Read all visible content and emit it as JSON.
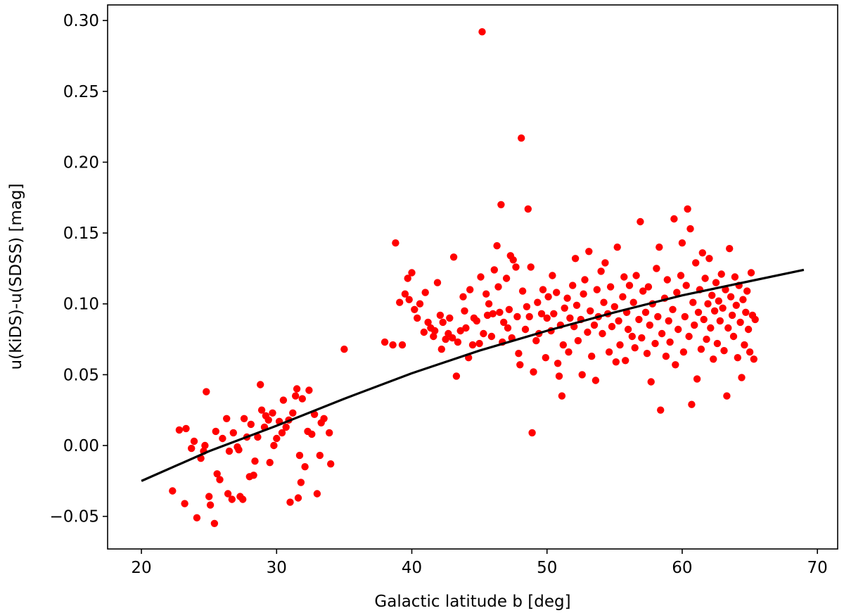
{
  "chart_data": {
    "type": "scatter",
    "title": "",
    "xlabel": "Galactic latitude b [deg]",
    "ylabel": "u(KiDS)-u(SDSS) [mag]",
    "xlim": [
      17.5,
      71.5
    ],
    "ylim": [
      -0.073,
      0.311
    ],
    "x_ticks": [
      20,
      30,
      40,
      50,
      60,
      70
    ],
    "x_tick_labels": [
      "20",
      "30",
      "40",
      "50",
      "60",
      "70"
    ],
    "y_ticks": [
      -0.05,
      0.0,
      0.05,
      0.1,
      0.15,
      0.2,
      0.25,
      0.3
    ],
    "y_tick_labels": [
      "−0.05",
      "0.00",
      "0.05",
      "0.10",
      "0.15",
      "0.20",
      "0.25",
      "0.30"
    ],
    "grid": false,
    "legend": "none",
    "colors": {
      "points": "#ff0000",
      "fit": "#000000",
      "axes": "#000000"
    },
    "series": [
      {
        "kind": "points",
        "points": [
          [
            22.3,
            -0.032
          ],
          [
            22.8,
            0.011
          ],
          [
            23.2,
            -0.041
          ],
          [
            23.3,
            0.012
          ],
          [
            23.7,
            -0.002
          ],
          [
            23.9,
            0.003
          ],
          [
            24.1,
            -0.051
          ],
          [
            24.4,
            -0.009
          ],
          [
            24.6,
            -0.004
          ],
          [
            24.7,
            0.0
          ],
          [
            24.8,
            0.038
          ],
          [
            25.0,
            -0.036
          ],
          [
            25.1,
            -0.042
          ],
          [
            25.4,
            -0.055
          ],
          [
            25.5,
            0.01
          ],
          [
            25.6,
            -0.02
          ],
          [
            25.8,
            -0.024
          ],
          [
            26.0,
            0.005
          ],
          [
            26.3,
            0.019
          ],
          [
            26.4,
            -0.034
          ],
          [
            26.5,
            -0.004
          ],
          [
            26.7,
            -0.038
          ],
          [
            26.8,
            0.009
          ],
          [
            27.1,
            -0.001
          ],
          [
            27.2,
            -0.003
          ],
          [
            27.3,
            -0.036
          ],
          [
            27.5,
            -0.038
          ],
          [
            27.6,
            0.019
          ],
          [
            27.8,
            0.006
          ],
          [
            28.0,
            -0.022
          ],
          [
            28.1,
            0.015
          ],
          [
            28.3,
            -0.021
          ],
          [
            28.4,
            -0.011
          ],
          [
            28.6,
            0.006
          ],
          [
            28.8,
            0.043
          ],
          [
            28.9,
            0.025
          ],
          [
            29.1,
            0.013
          ],
          [
            29.2,
            0.021
          ],
          [
            29.4,
            0.018
          ],
          [
            29.5,
            -0.012
          ],
          [
            29.7,
            0.023
          ],
          [
            29.8,
            0.0
          ],
          [
            30.0,
            0.005
          ],
          [
            30.2,
            0.017
          ],
          [
            30.4,
            0.009
          ],
          [
            30.5,
            0.032
          ],
          [
            30.7,
            0.013
          ],
          [
            30.9,
            0.018
          ],
          [
            31.0,
            -0.04
          ],
          [
            31.2,
            0.023
          ],
          [
            31.4,
            0.035
          ],
          [
            31.5,
            0.04
          ],
          [
            31.6,
            -0.037
          ],
          [
            31.7,
            -0.007
          ],
          [
            31.8,
            -0.026
          ],
          [
            31.9,
            0.033
          ],
          [
            32.1,
            -0.015
          ],
          [
            32.3,
            0.01
          ],
          [
            32.4,
            0.039
          ],
          [
            32.6,
            0.008
          ],
          [
            32.8,
            0.022
          ],
          [
            33.0,
            -0.034
          ],
          [
            33.2,
            -0.007
          ],
          [
            33.3,
            0.016
          ],
          [
            33.5,
            0.019
          ],
          [
            33.9,
            0.009
          ],
          [
            34.0,
            -0.013
          ],
          [
            35.0,
            0.068
          ],
          [
            38.0,
            0.073
          ],
          [
            38.6,
            0.071
          ],
          [
            38.8,
            0.143
          ],
          [
            39.1,
            0.101
          ],
          [
            39.3,
            0.071
          ],
          [
            39.5,
            0.107
          ],
          [
            39.7,
            0.118
          ],
          [
            39.8,
            0.103
          ],
          [
            40.0,
            0.122
          ],
          [
            40.2,
            0.096
          ],
          [
            40.4,
            0.09
          ],
          [
            40.6,
            0.1
          ],
          [
            40.9,
            0.08
          ],
          [
            41.0,
            0.108
          ],
          [
            41.2,
            0.087
          ],
          [
            41.4,
            0.083
          ],
          [
            41.6,
            0.077
          ],
          [
            41.7,
            0.081
          ],
          [
            41.9,
            0.115
          ],
          [
            42.1,
            0.092
          ],
          [
            42.2,
            0.068
          ],
          [
            42.3,
            0.087
          ],
          [
            42.5,
            0.075
          ],
          [
            42.7,
            0.079
          ],
          [
            42.8,
            0.09
          ],
          [
            43.0,
            0.076
          ],
          [
            43.1,
            0.133
          ],
          [
            43.3,
            0.049
          ],
          [
            43.4,
            0.073
          ],
          [
            43.6,
            0.081
          ],
          [
            43.8,
            0.105
          ],
          [
            43.9,
            0.095
          ],
          [
            44.0,
            0.083
          ],
          [
            44.2,
            0.062
          ],
          [
            44.3,
            0.11
          ],
          [
            44.5,
            0.071
          ],
          [
            44.6,
            0.09
          ],
          [
            44.8,
            0.088
          ],
          [
            45.0,
            0.072
          ],
          [
            45.1,
            0.119
          ],
          [
            45.2,
            0.292
          ],
          [
            45.3,
            0.079
          ],
          [
            45.5,
            0.107
          ],
          [
            45.6,
            0.092
          ],
          [
            45.7,
            0.1
          ],
          [
            45.9,
            0.077
          ],
          [
            46.0,
            0.093
          ],
          [
            46.1,
            0.124
          ],
          [
            46.3,
            0.141
          ],
          [
            46.4,
            0.112
          ],
          [
            46.5,
            0.094
          ],
          [
            46.6,
            0.17
          ],
          [
            46.7,
            0.073
          ],
          [
            46.8,
            0.087
          ],
          [
            47.0,
            0.118
          ],
          [
            47.1,
            0.083
          ],
          [
            47.2,
            0.096
          ],
          [
            47.3,
            0.134
          ],
          [
            47.4,
            0.076
          ],
          [
            47.5,
            0.131
          ],
          [
            47.7,
            0.126
          ],
          [
            47.8,
            0.091
          ],
          [
            47.9,
            0.065
          ],
          [
            48.0,
            0.057
          ],
          [
            48.1,
            0.217
          ],
          [
            48.2,
            0.109
          ],
          [
            48.4,
            0.082
          ],
          [
            48.5,
            0.098
          ],
          [
            48.6,
            0.167
          ],
          [
            48.7,
            0.091
          ],
          [
            48.8,
            0.126
          ],
          [
            48.9,
            0.009
          ],
          [
            49.0,
            0.052
          ],
          [
            49.2,
            0.074
          ],
          [
            49.3,
            0.101
          ],
          [
            49.4,
            0.079
          ],
          [
            49.6,
            0.093
          ],
          [
            49.7,
            0.11
          ],
          [
            49.9,
            0.062
          ],
          [
            50.0,
            0.09
          ],
          [
            50.1,
            0.105
          ],
          [
            50.3,
            0.081
          ],
          [
            50.4,
            0.12
          ],
          [
            50.5,
            0.093
          ],
          [
            50.7,
            0.108
          ],
          [
            50.8,
            0.058
          ],
          [
            50.9,
            0.049
          ],
          [
            51.0,
            0.085
          ],
          [
            51.1,
            0.035
          ],
          [
            51.2,
            0.071
          ],
          [
            51.3,
            0.097
          ],
          [
            51.5,
            0.104
          ],
          [
            51.6,
            0.066
          ],
          [
            51.7,
            0.09
          ],
          [
            51.9,
            0.113
          ],
          [
            52.0,
            0.084
          ],
          [
            52.1,
            0.132
          ],
          [
            52.2,
            0.099
          ],
          [
            52.3,
            0.074
          ],
          [
            52.5,
            0.089
          ],
          [
            52.6,
            0.05
          ],
          [
            52.7,
            0.107
          ],
          [
            52.8,
            0.117
          ],
          [
            53.0,
            0.08
          ],
          [
            53.1,
            0.137
          ],
          [
            53.2,
            0.095
          ],
          [
            53.3,
            0.063
          ],
          [
            53.5,
            0.085
          ],
          [
            53.6,
            0.046
          ],
          [
            53.7,
            0.11
          ],
          [
            53.8,
            0.091
          ],
          [
            54.0,
            0.123
          ],
          [
            54.1,
            0.079
          ],
          [
            54.2,
            0.101
          ],
          [
            54.3,
            0.129
          ],
          [
            54.5,
            0.093
          ],
          [
            54.6,
            0.066
          ],
          [
            54.7,
            0.112
          ],
          [
            54.8,
            0.084
          ],
          [
            55.0,
            0.098
          ],
          [
            55.1,
            0.059
          ],
          [
            55.2,
            0.14
          ],
          [
            55.3,
            0.088
          ],
          [
            55.4,
            0.071
          ],
          [
            55.6,
            0.105
          ],
          [
            55.7,
            0.119
          ],
          [
            55.8,
            0.06
          ],
          [
            55.9,
            0.094
          ],
          [
            56.0,
            0.082
          ],
          [
            56.1,
            0.113
          ],
          [
            56.3,
            0.077
          ],
          [
            56.4,
            0.101
          ],
          [
            56.5,
            0.069
          ],
          [
            56.6,
            0.12
          ],
          [
            56.8,
            0.089
          ],
          [
            56.9,
            0.158
          ],
          [
            57.0,
            0.076
          ],
          [
            57.1,
            0.109
          ],
          [
            57.3,
            0.094
          ],
          [
            57.4,
            0.065
          ],
          [
            57.5,
            0.112
          ],
          [
            57.6,
            0.085
          ],
          [
            57.7,
            0.045
          ],
          [
            57.8,
            0.1
          ],
          [
            58.0,
            0.072
          ],
          [
            58.1,
            0.125
          ],
          [
            58.2,
            0.091
          ],
          [
            58.3,
            0.14
          ],
          [
            58.4,
            0.025
          ],
          [
            58.5,
            0.079
          ],
          [
            58.7,
            0.104
          ],
          [
            58.8,
            0.063
          ],
          [
            58.9,
            0.117
          ],
          [
            59.0,
            0.088
          ],
          [
            59.1,
            0.073
          ],
          [
            59.3,
            0.096
          ],
          [
            59.4,
            0.16
          ],
          [
            59.5,
            0.057
          ],
          [
            59.6,
            0.108
          ],
          [
            59.7,
            0.082
          ],
          [
            59.9,
            0.12
          ],
          [
            60.0,
            0.143
          ],
          [
            60.1,
            0.066
          ],
          [
            60.2,
            0.091
          ],
          [
            60.3,
            0.113
          ],
          [
            60.4,
            0.167
          ],
          [
            60.5,
            0.077
          ],
          [
            60.6,
            0.153
          ],
          [
            60.7,
            0.029
          ],
          [
            60.8,
            0.101
          ],
          [
            60.9,
            0.085
          ],
          [
            61.0,
            0.129
          ],
          [
            61.1,
            0.047
          ],
          [
            61.2,
            0.094
          ],
          [
            61.3,
            0.11
          ],
          [
            61.4,
            0.068
          ],
          [
            61.5,
            0.136
          ],
          [
            61.6,
            0.089
          ],
          [
            61.7,
            0.118
          ],
          [
            61.8,
            0.075
          ],
          [
            61.9,
            0.1
          ],
          [
            62.0,
            0.132
          ],
          [
            62.1,
            0.083
          ],
          [
            62.2,
            0.106
          ],
          [
            62.3,
            0.061
          ],
          [
            62.4,
            0.095
          ],
          [
            62.5,
            0.115
          ],
          [
            62.6,
            0.072
          ],
          [
            62.7,
            0.102
          ],
          [
            62.8,
            0.088
          ],
          [
            62.9,
            0.121
          ],
          [
            63.0,
            0.097
          ],
          [
            63.1,
            0.067
          ],
          [
            63.2,
            0.11
          ],
          [
            63.3,
            0.035
          ],
          [
            63.4,
            0.083
          ],
          [
            63.5,
            0.139
          ],
          [
            63.6,
            0.105
          ],
          [
            63.7,
            0.092
          ],
          [
            63.8,
            0.077
          ],
          [
            63.9,
            0.119
          ],
          [
            64.0,
            0.099
          ],
          [
            64.1,
            0.062
          ],
          [
            64.2,
            0.113
          ],
          [
            64.3,
            0.087
          ],
          [
            64.4,
            0.048
          ],
          [
            64.5,
            0.103
          ],
          [
            64.6,
            0.071
          ],
          [
            64.7,
            0.094
          ],
          [
            64.8,
            0.109
          ],
          [
            64.9,
            0.082
          ],
          [
            65.0,
            0.066
          ],
          [
            65.1,
            0.122
          ],
          [
            65.2,
            0.092
          ],
          [
            65.3,
            0.061
          ],
          [
            65.4,
            0.089
          ]
        ]
      },
      {
        "kind": "line",
        "points": [
          [
            20,
            -0.025
          ],
          [
            25,
            -0.004
          ],
          [
            30,
            0.014
          ],
          [
            35,
            0.033
          ],
          [
            40,
            0.051
          ],
          [
            45,
            0.067
          ],
          [
            50,
            0.081
          ],
          [
            55,
            0.094
          ],
          [
            60,
            0.106
          ],
          [
            65,
            0.116
          ],
          [
            69,
            0.124
          ]
        ]
      }
    ]
  }
}
